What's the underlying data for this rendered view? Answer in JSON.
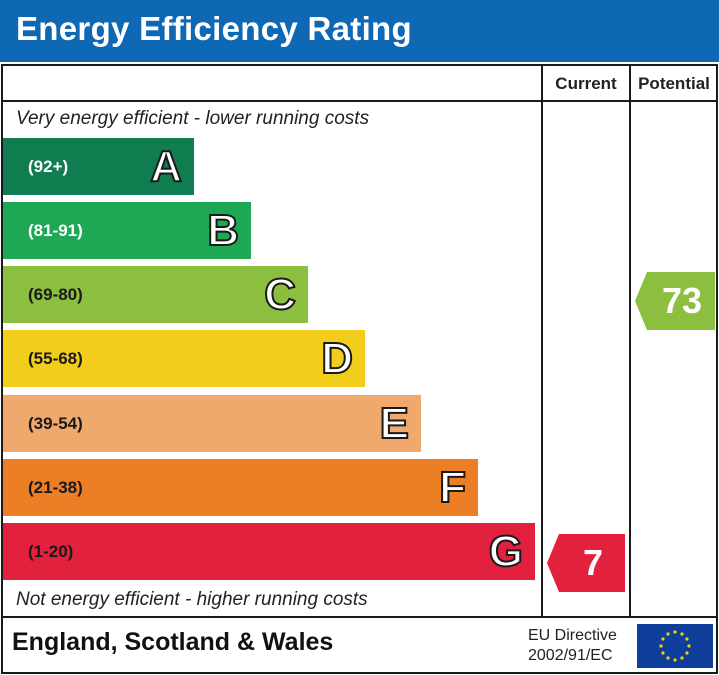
{
  "header": {
    "title": "Energy Efficiency Rating"
  },
  "columns": {
    "current": "Current",
    "potential": "Potential"
  },
  "notes": {
    "top": "Very energy efficient - lower running costs",
    "bottom": "Not energy efficient - higher running costs"
  },
  "bands": [
    {
      "letter": "A",
      "range": "(92+)",
      "color": "#0f7d4f"
    },
    {
      "letter": "B",
      "range": "(81-91)",
      "color": "#1ea855"
    },
    {
      "letter": "C",
      "range": "(69-80)",
      "color": "#8cbf3f"
    },
    {
      "letter": "D",
      "range": "(55-68)",
      "color": "#f2cd1b"
    },
    {
      "letter": "E",
      "range": "(39-54)",
      "color": "#f0a96c"
    },
    {
      "letter": "F",
      "range": "(21-38)",
      "color": "#ec7e26"
    },
    {
      "letter": "G",
      "range": "(1-20)",
      "color": "#e2213e"
    }
  ],
  "ratings": {
    "current": {
      "value": "7",
      "band": "G",
      "color": "#e2213e"
    },
    "potential": {
      "value": "73",
      "band": "C",
      "color": "#8cbf3f"
    }
  },
  "footer": {
    "region": "England, Scotland & Wales",
    "directive_line1": "EU Directive",
    "directive_line2": "2002/91/EC",
    "flag_icon": "eu-flag-icon"
  }
}
